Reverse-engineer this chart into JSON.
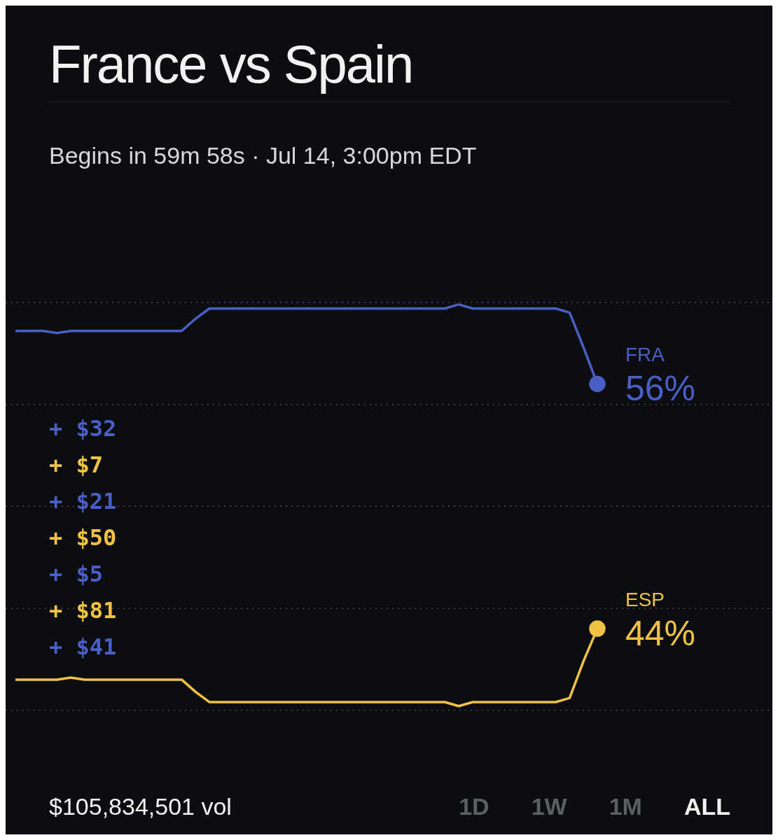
{
  "chart_data": {
    "type": "line",
    "title": "France vs Spain",
    "subtitle": "Begins in 59m 58s · Jul 14, 3:00pm EDT",
    "categories": [
      null,
      null,
      null,
      null,
      null,
      null,
      null,
      null,
      null,
      null,
      null,
      null,
      null,
      null,
      null,
      null,
      null,
      null,
      null,
      null,
      null,
      null,
      null,
      null,
      null,
      null,
      null,
      null,
      null,
      null,
      null,
      null,
      null,
      null,
      null,
      null,
      null,
      null,
      null,
      null,
      null,
      null,
      null
    ],
    "series": [
      {
        "name": "FRA",
        "color": "#4a5fc6",
        "values": [
          58.6,
          58.6,
          58.6,
          58.5,
          58.6,
          58.6,
          58.6,
          58.6,
          58.6,
          58.6,
          58.6,
          58.6,
          58.6,
          59.2,
          59.7,
          59.7,
          59.7,
          59.7,
          59.7,
          59.7,
          59.7,
          59.7,
          59.7,
          59.7,
          59.7,
          59.7,
          59.7,
          59.7,
          59.7,
          59.7,
          59.7,
          59.7,
          59.9,
          59.7,
          59.7,
          59.7,
          59.7,
          59.7,
          59.7,
          59.7,
          59.5,
          57.8,
          56
        ],
        "value_labels": [
          null,
          null,
          null,
          null,
          null,
          null,
          null,
          null,
          null,
          null,
          null,
          null,
          null,
          null,
          null,
          null,
          null,
          null,
          null,
          null,
          null,
          null,
          null,
          null,
          null,
          null,
          null,
          null,
          null,
          null,
          null,
          null,
          null,
          null,
          null,
          null,
          null,
          null,
          null,
          null,
          null,
          null,
          "56%"
        ]
      },
      {
        "name": "ESP",
        "color": "#f0c244",
        "values": [
          41.5,
          41.5,
          41.5,
          41.5,
          41.6,
          41.5,
          41.5,
          41.5,
          41.5,
          41.5,
          41.5,
          41.5,
          41.5,
          40.9,
          40.4,
          40.4,
          40.4,
          40.4,
          40.4,
          40.4,
          40.4,
          40.4,
          40.4,
          40.4,
          40.4,
          40.4,
          40.4,
          40.4,
          40.4,
          40.4,
          40.4,
          40.4,
          40.2,
          40.4,
          40.4,
          40.4,
          40.4,
          40.4,
          40.4,
          40.4,
          40.6,
          42.4,
          44
        ],
        "value_labels": [
          null,
          null,
          null,
          null,
          null,
          null,
          null,
          null,
          null,
          null,
          null,
          null,
          null,
          null,
          null,
          null,
          null,
          null,
          null,
          null,
          null,
          null,
          null,
          null,
          null,
          null,
          null,
          null,
          null,
          null,
          null,
          null,
          null,
          null,
          null,
          null,
          null,
          null,
          null,
          null,
          null,
          null,
          "44%"
        ]
      }
    ],
    "ylim": [
      40,
      60
    ],
    "yticks": [
      {
        "value": 40,
        "label": null
      },
      {
        "value": 45,
        "label": null
      },
      {
        "value": 50,
        "label": null
      },
      {
        "value": 55,
        "label": null
      },
      {
        "value": 60,
        "label": null
      }
    ],
    "grid": "y",
    "legend": false,
    "annotations": [
      "+ $32",
      "+ $7",
      "+ $21",
      "+ $50",
      "+ $5",
      "+ $81",
      "+ $41",
      "$105,834,501 vol",
      "1D",
      "1W",
      "1M",
      "ALL"
    ]
  }
}
